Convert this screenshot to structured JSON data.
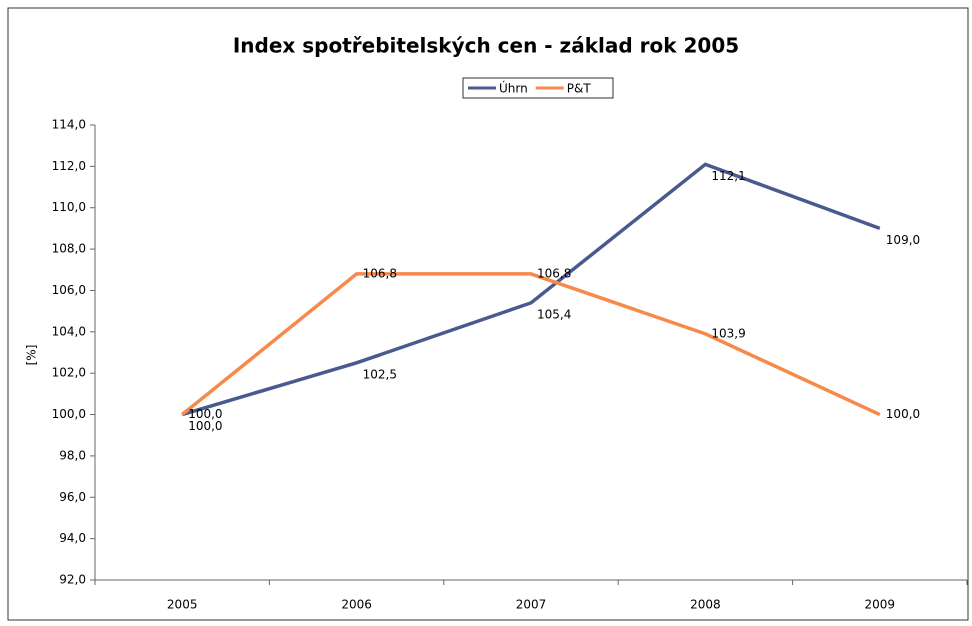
{
  "chart_data": {
    "type": "line",
    "title": "Index spotřebitelských cen - základ rok 2005",
    "y_label": "[%]",
    "categories": [
      "2005",
      "2006",
      "2007",
      "2008",
      "2009"
    ],
    "series": [
      {
        "name": "Úhrn",
        "color": "#4b5a8e",
        "values": [
          100.0,
          102.5,
          105.4,
          112.1,
          109.0
        ],
        "value_labels": [
          "100,0",
          "102,5",
          "105,4",
          "112,1",
          "109,0"
        ]
      },
      {
        "name": "P&T",
        "color": "#f7894a",
        "values": [
          100.0,
          106.8,
          106.8,
          103.9,
          100.0
        ],
        "value_labels": [
          "100,0",
          "106,8",
          "106,8",
          "103,9",
          "100,0"
        ]
      }
    ],
    "ylim": [
      92,
      114
    ],
    "yticks": [
      {
        "value": 92,
        "label": "92,0"
      },
      {
        "value": 94,
        "label": "94,0"
      },
      {
        "value": 96,
        "label": "96,0"
      },
      {
        "value": 98,
        "label": "98,0"
      },
      {
        "value": 100,
        "label": "100,0"
      },
      {
        "value": 102,
        "label": "102,0"
      },
      {
        "value": 104,
        "label": "104,0"
      },
      {
        "value": 106,
        "label": "106,0"
      },
      {
        "value": 108,
        "label": "108,0"
      },
      {
        "value": 110,
        "label": "110,0"
      },
      {
        "value": 112,
        "label": "112,0"
      },
      {
        "value": 114,
        "label": "114,0"
      }
    ],
    "grid": false,
    "legend": "top"
  }
}
